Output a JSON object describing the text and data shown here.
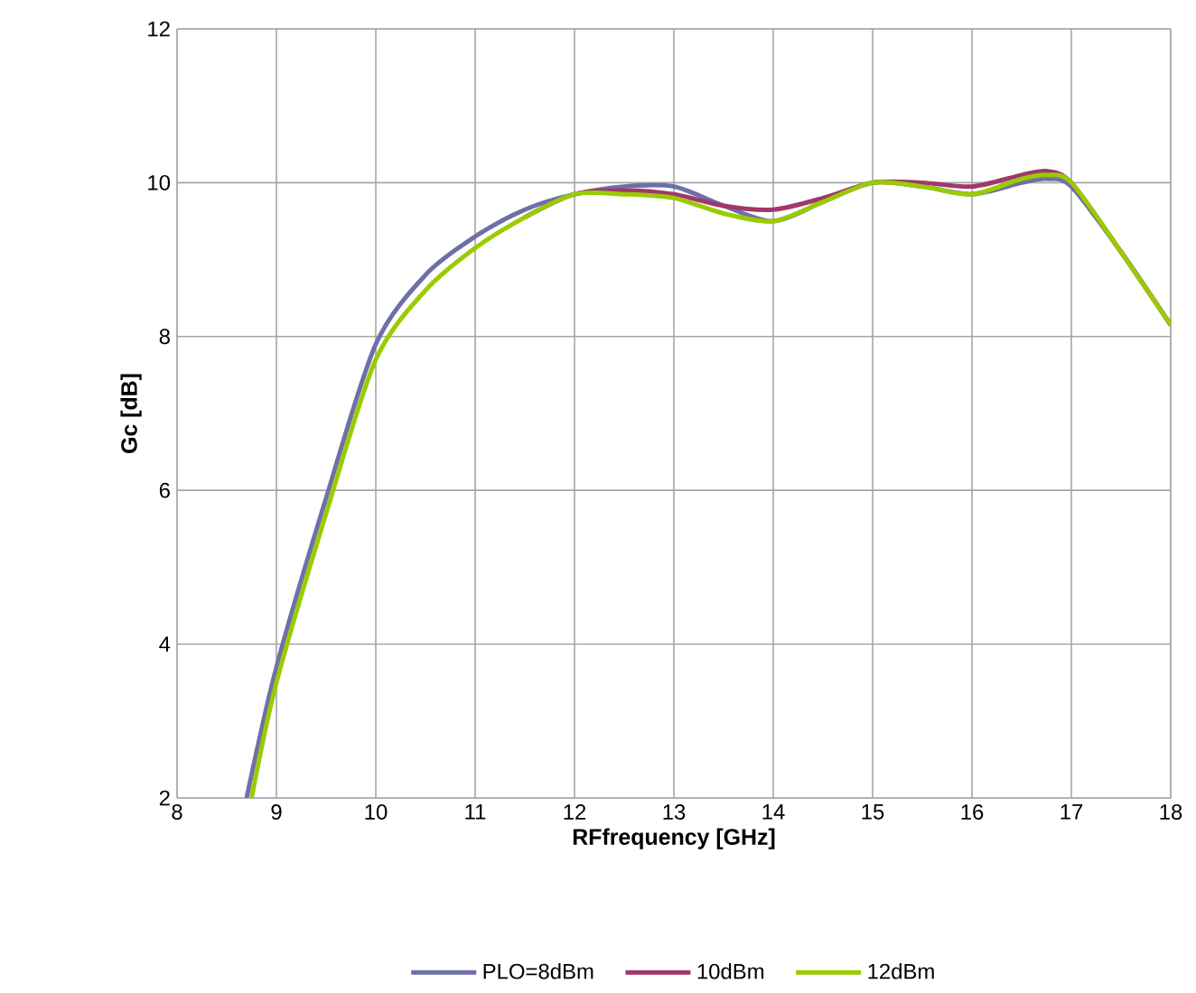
{
  "chart_data": {
    "type": "line",
    "xlabel": "RFfrequency [GHz]",
    "ylabel": "Gc [dB]",
    "xlim": [
      8,
      18
    ],
    "ylim": [
      2,
      12
    ],
    "xticks": [
      8,
      9,
      10,
      11,
      12,
      13,
      14,
      15,
      16,
      17,
      18
    ],
    "yticks": [
      2,
      4,
      6,
      8,
      10,
      12
    ],
    "grid": true,
    "legend": "bottom",
    "marker": "none",
    "series": [
      {
        "name": "PLO=8dBm",
        "color": "#6f6fa8",
        "x": [
          8.7,
          9,
          9.5,
          10,
          10.5,
          11,
          11.5,
          12,
          12.5,
          13,
          13.5,
          14,
          14.5,
          15,
          15.5,
          16,
          16.5,
          16.75,
          17,
          17.5,
          18
        ],
        "values": [
          2.0,
          3.7,
          5.9,
          7.9,
          8.8,
          9.3,
          9.65,
          9.85,
          9.95,
          9.95,
          9.7,
          9.5,
          9.75,
          10.0,
          9.95,
          9.85,
          10.0,
          10.05,
          9.95,
          9.1,
          8.15
        ]
      },
      {
        "name": "10dBm",
        "color": "#a0386a",
        "x": [
          11.5,
          12,
          12.5,
          13,
          13.5,
          14,
          14.5,
          15,
          15.5,
          16,
          16.5,
          16.75,
          17,
          17.5,
          18
        ],
        "values": [
          9.55,
          9.85,
          9.9,
          9.85,
          9.7,
          9.65,
          9.8,
          10.0,
          10.0,
          9.95,
          10.1,
          10.15,
          10.0,
          9.1,
          8.15
        ]
      },
      {
        "name": "12dBm",
        "color": "#99cc00",
        "x": [
          8.75,
          9,
          9.5,
          10,
          10.5,
          11,
          11.5,
          12,
          12.5,
          13,
          13.5,
          14,
          14.5,
          15,
          15.5,
          16,
          16.5,
          16.75,
          17,
          17.5,
          18
        ],
        "values": [
          2.0,
          3.5,
          5.7,
          7.7,
          8.6,
          9.15,
          9.55,
          9.85,
          9.85,
          9.8,
          9.6,
          9.5,
          9.75,
          10.0,
          9.95,
          9.85,
          10.05,
          10.1,
          10.0,
          9.1,
          8.15
        ]
      }
    ]
  }
}
